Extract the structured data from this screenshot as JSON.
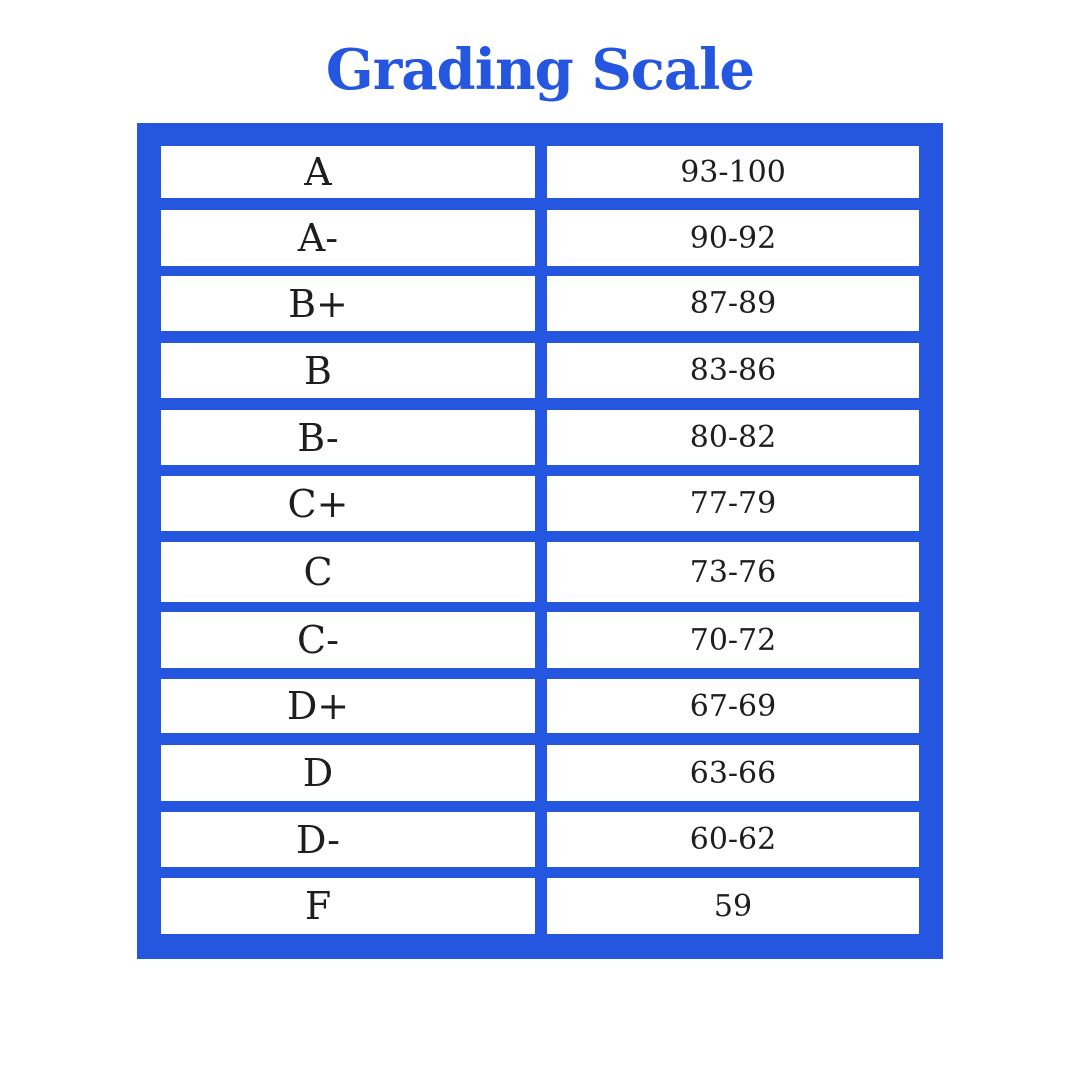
{
  "title": "Grading Scale",
  "colors": {
    "accent": "#2456e0",
    "text": "#1e1e1e",
    "background": "#ffffff"
  },
  "rows": [
    {
      "grade": "A",
      "range": "93-100"
    },
    {
      "grade": "A-",
      "range": "90-92"
    },
    {
      "grade": "B+",
      "range": "87-89"
    },
    {
      "grade": "B",
      "range": "83-86"
    },
    {
      "grade": "B-",
      "range": "80-82"
    },
    {
      "grade": "C+",
      "range": "77-79"
    },
    {
      "grade": "C",
      "range": "73-76"
    },
    {
      "grade": "C-",
      "range": "70-72"
    },
    {
      "grade": "D+",
      "range": "67-69"
    },
    {
      "grade": "D",
      "range": "63-66"
    },
    {
      "grade": "D-",
      "range": "60-62"
    },
    {
      "grade": "F",
      "range": "59"
    }
  ]
}
